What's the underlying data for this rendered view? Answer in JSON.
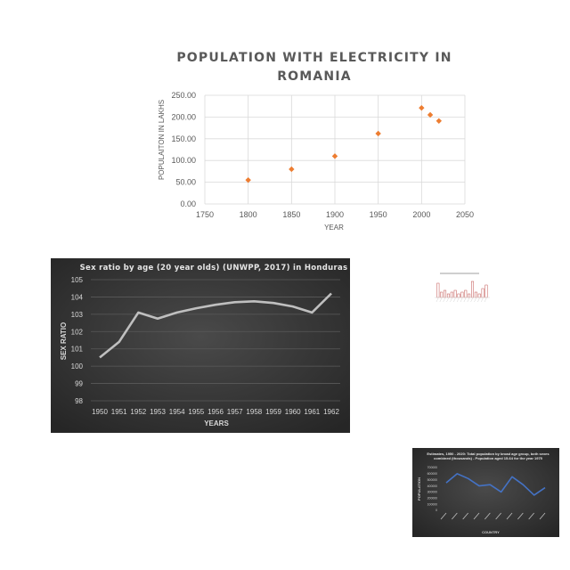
{
  "chart_data": [
    {
      "type": "scatter",
      "title": "POPULATION WITH ELECTRICITY IN ROMANIA",
      "title_lines": [
        "POPULATION WITH ELECTRICITY IN",
        "ROMANIA"
      ],
      "xlabel": "YEAR",
      "ylabel": "POPULAITON IN LAKHS",
      "xlim": [
        1750,
        2050
      ],
      "ylim": [
        0,
        250
      ],
      "x_ticks": [
        "1750",
        "1800",
        "1850",
        "1900",
        "1950",
        "2000",
        "2050"
      ],
      "y_ticks": [
        "0.00",
        "50.00",
        "100.00",
        "150.00",
        "200.00",
        "250.00"
      ],
      "grid": true,
      "marker_color": "#ed7d31",
      "points": [
        {
          "x": 1800,
          "y": 55
        },
        {
          "x": 1850,
          "y": 80
        },
        {
          "x": 1900,
          "y": 110
        },
        {
          "x": 1950,
          "y": 162
        },
        {
          "x": 2000,
          "y": 221
        },
        {
          "x": 2010,
          "y": 205
        },
        {
          "x": 2020,
          "y": 191
        }
      ]
    },
    {
      "type": "line",
      "title": "Sex ratio by age (20 year olds) (UNWPP, 2017) in Honduras",
      "xlabel": "YEARS",
      "ylabel": "SEX RATIO",
      "ylim": [
        98,
        105
      ],
      "y_ticks": [
        "98",
        "99",
        "100",
        "101",
        "102",
        "103",
        "104",
        "105"
      ],
      "categories": [
        "1950",
        "1951",
        "1952",
        "1953",
        "1954",
        "1955",
        "1956",
        "1957",
        "1958",
        "1959",
        "1960",
        "1961",
        "1962"
      ],
      "values": [
        100.5,
        101.4,
        103.1,
        102.75,
        103.1,
        103.35,
        103.55,
        103.7,
        103.75,
        103.65,
        103.45,
        103.1,
        104.2
      ],
      "grid": true,
      "background": "#3a3a3a",
      "line_color": "#bfbfbf"
    },
    {
      "type": "bar",
      "values": [
        8,
        3,
        4,
        2,
        3,
        4,
        2,
        3,
        4,
        2,
        9,
        3,
        2,
        5,
        7
      ],
      "ylim": [
        0,
        10
      ],
      "bar_color": "#c0504d"
    },
    {
      "type": "line",
      "title": "Estimates, 1950 - 2020: Total population by broad age group, both sexes combined (thousands) - Population aged 15-64 for the year 1975",
      "title_lines": [
        "Estimates, 1950 - 2020: Total population by broad age group, both sexes",
        "combined (thousands) - Population aged 15-64 for the year 1975"
      ],
      "xlabel": "COUNTRY",
      "ylabel": "POPULATION",
      "ylim": [
        0,
        700000
      ],
      "y_ticks": [
        "0",
        "100000",
        "200000",
        "300000",
        "400000",
        "500000",
        "600000",
        "700000"
      ],
      "values": [
        450000,
        600000,
        520000,
        400000,
        420000,
        300000,
        550000,
        420000,
        250000,
        370000
      ],
      "background": "#3a3a3a",
      "line_color": "#4472c4"
    }
  ]
}
